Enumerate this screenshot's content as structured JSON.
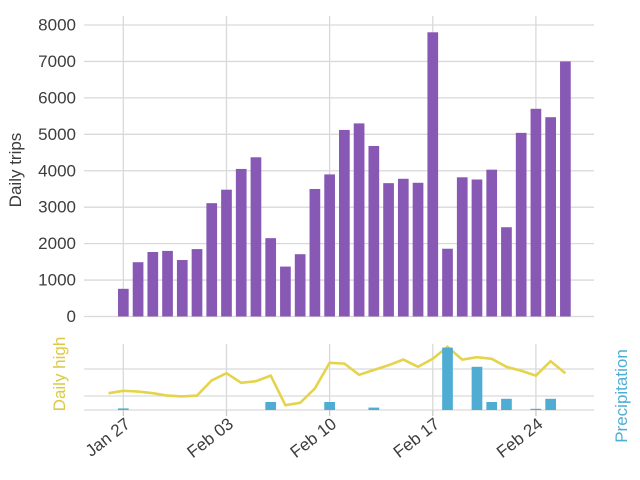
{
  "chart_data": [
    {
      "id": "daily-trips",
      "type": "bar",
      "ylabel": "Daily trips",
      "yticks": [
        0,
        1000,
        2000,
        3000,
        4000,
        5000,
        6000,
        7000,
        8000
      ],
      "ylim": [
        0,
        8250
      ],
      "grid": true,
      "bar_color": "#8859b4",
      "categories": [
        "Jan 27",
        "Jan 28",
        "Jan 29",
        "Jan 30",
        "Jan 31",
        "Feb 01",
        "Feb 02",
        "Feb 03",
        "Feb 04",
        "Feb 05",
        "Feb 06",
        "Feb 07",
        "Feb 08",
        "Feb 09",
        "Feb 10",
        "Feb 11",
        "Feb 12",
        "Feb 13",
        "Feb 14",
        "Feb 15",
        "Feb 16",
        "Feb 17",
        "Feb 18",
        "Feb 19",
        "Feb 20",
        "Feb 21",
        "Feb 22",
        "Feb 23",
        "Feb 24",
        "Feb 25",
        "Feb 26"
      ],
      "values": [
        760,
        1490,
        1770,
        1800,
        1550,
        1850,
        3110,
        3480,
        4050,
        4370,
        2150,
        1370,
        1710,
        3500,
        3900,
        5120,
        5300,
        4680,
        3660,
        3780,
        3670,
        7800,
        1860,
        3820,
        3760,
        4030,
        2450,
        5040,
        5700,
        5470,
        7000
      ]
    },
    {
      "id": "weather",
      "type": "line+bar",
      "left_axis_label": "Daily high",
      "right_axis_label": "Precipitation",
      "line_color": "#e5d44b",
      "bar_color": "#4fadd3",
      "axis_note": "no numeric ticks shown; values are relative panel heights (0-1)",
      "x": [
        "Jan 26",
        "Jan 27",
        "Jan 28",
        "Jan 29",
        "Jan 30",
        "Jan 31",
        "Feb 01",
        "Feb 02",
        "Feb 03",
        "Feb 04",
        "Feb 05",
        "Feb 06",
        "Feb 07",
        "Feb 08",
        "Feb 09",
        "Feb 10",
        "Feb 11",
        "Feb 12",
        "Feb 13",
        "Feb 14",
        "Feb 15",
        "Feb 16",
        "Feb 17",
        "Feb 18",
        "Feb 19",
        "Feb 20",
        "Feb 21",
        "Feb 22",
        "Feb 23",
        "Feb 24",
        "Feb 25",
        "Feb 26"
      ],
      "daily_high_rel": [
        0.21,
        0.24,
        0.23,
        0.21,
        0.18,
        0.17,
        0.18,
        0.37,
        0.46,
        0.34,
        0.36,
        0.43,
        0.06,
        0.09,
        0.27,
        0.59,
        0.58,
        0.44,
        0.5,
        0.56,
        0.63,
        0.54,
        0.64,
        0.79,
        0.63,
        0.66,
        0.64,
        0.54,
        0.49,
        0.43,
        0.61,
        0.46
      ],
      "precipitation_rel": [
        {
          "date": "Jan 27",
          "value": 0.02
        },
        {
          "date": "Feb 06",
          "value": 0.1
        },
        {
          "date": "Feb 10",
          "value": 0.1
        },
        {
          "date": "Feb 13",
          "value": 0.03
        },
        {
          "date": "Feb 18",
          "value": 0.78
        },
        {
          "date": "Feb 20",
          "value": 0.54
        },
        {
          "date": "Feb 21",
          "value": 0.1
        },
        {
          "date": "Feb 22",
          "value": 0.14
        },
        {
          "date": "Feb 24",
          "value": 0.015
        },
        {
          "date": "Feb 25",
          "value": 0.14
        }
      ]
    }
  ],
  "x_axis": {
    "tick_labels": [
      "Jan 27",
      "Feb 03",
      "Feb 10",
      "Feb 17",
      "Feb 24"
    ]
  },
  "colors": {
    "grid": "#d9d9d9",
    "tick": "#c9c9c9",
    "text": "#3d3d3d",
    "trips_bar": "#8859b4",
    "high_line": "#e5d44b",
    "high_label": "#dcc944",
    "precip_bar": "#4fadd3",
    "precip_label": "#4fadd3",
    "background": "#ffffff"
  }
}
